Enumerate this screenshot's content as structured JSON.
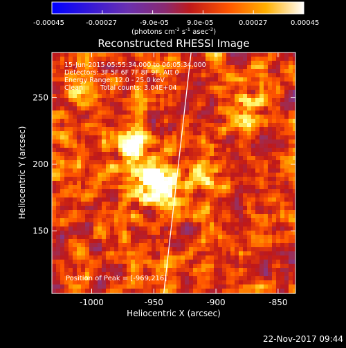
{
  "colorbar": {
    "ticks": [
      "-0.00045",
      "-0.00027",
      "-9.0e-05",
      "9.0e-05",
      "0.00027",
      "0.00045"
    ],
    "units_prefix": "(photons cm",
    "units_mid1": " s",
    "units_mid2": " asec",
    "units_suffix": ")",
    "units_exp1": "-2",
    "units_exp2": "-1",
    "units_exp3": "-2"
  },
  "chart_data": {
    "type": "heatmap",
    "title": "Reconstructed RHESSI Image",
    "xlabel": "Heliocentric X (arcsec)",
    "ylabel": "Heliocentric Y (arcsec)",
    "xlim": [
      -1032,
      -836
    ],
    "ylim": [
      103,
      284
    ],
    "x_ticks": [
      -1000,
      -950,
      -900,
      -850
    ],
    "y_ticks": [
      150,
      200,
      250
    ],
    "x_tick_labels": [
      "-1000",
      "-950",
      "-900",
      "-850"
    ],
    "y_tick_labels": [
      "150",
      "200",
      "250"
    ],
    "colormap": [
      "#0000ff",
      "#7a3aa0",
      "#9a2f5a",
      "#c01818",
      "#ff5500",
      "#ffb000",
      "#ffff80",
      "#ffffff"
    ],
    "value_range": [
      -0.00045,
      0.00045
    ],
    "peak": [
      -969,
      216
    ],
    "limb_x_at_ymin": -942,
    "limb_x_at_ymax": -920,
    "sources": [
      {
        "x": -966,
        "y": 214,
        "w": 0.00045
      },
      {
        "x": -952,
        "y": 188,
        "w": 0.00045
      },
      {
        "x": -942,
        "y": 178,
        "w": 0.0004
      },
      {
        "x": -910,
        "y": 188,
        "w": 0.0003
      },
      {
        "x": -1010,
        "y": 258,
        "w": 0.0002
      },
      {
        "x": -870,
        "y": 240,
        "w": 0.00025
      },
      {
        "x": -955,
        "y": 125,
        "w": 0.00015
      }
    ]
  },
  "annotations": {
    "time_range": "15-Jun-2015 05:55:34.000 to 06:05:34.000",
    "detectors": "Detectors: 3F 5F 6F 7F 8F 9F, Att 0",
    "energy": "Energy Range: 12.0 - 25.0 keV",
    "clean_label": "Clean",
    "total_counts": "Total counts: 3.04E+04",
    "peak_label": "Position of Peak = [-969,216]"
  },
  "footer": {
    "timestamp": "22-Nov-2017 09:44"
  }
}
